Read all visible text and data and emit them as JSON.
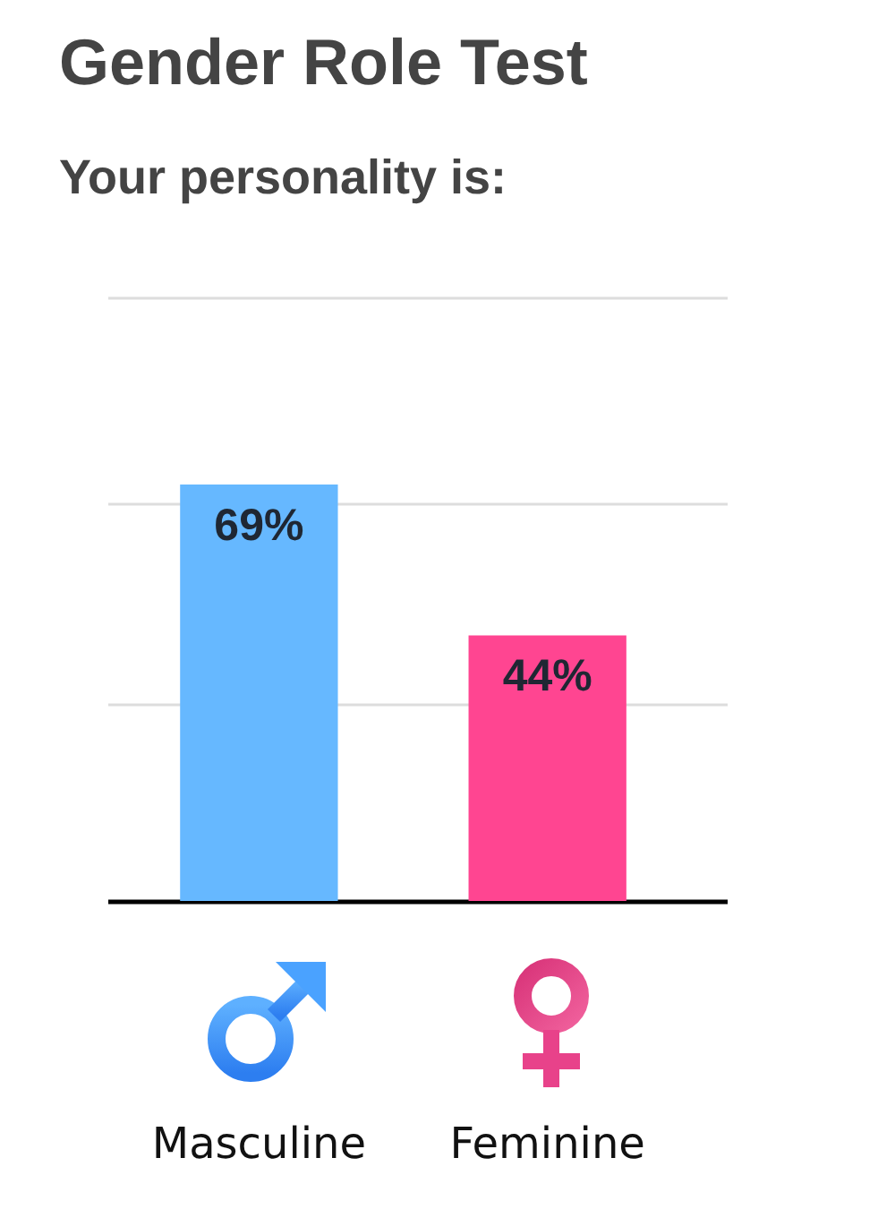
{
  "chart_data": {
    "type": "bar",
    "title": "Gender Role Test",
    "subtitle": "Your personality is:",
    "categories": [
      "Masculine",
      "Feminine"
    ],
    "values": [
      69,
      44
    ],
    "colors": [
      "#66b8ff",
      "#ff4591"
    ],
    "value_labels": [
      "69%",
      "44%"
    ],
    "ylim": [
      0,
      100
    ],
    "yticks": [
      {
        "value": 32.5,
        "label": null
      },
      {
        "value": 66,
        "label": null
      },
      {
        "value": 100,
        "label": null
      }
    ],
    "grid": "y",
    "tick_labels": "x"
  }
}
